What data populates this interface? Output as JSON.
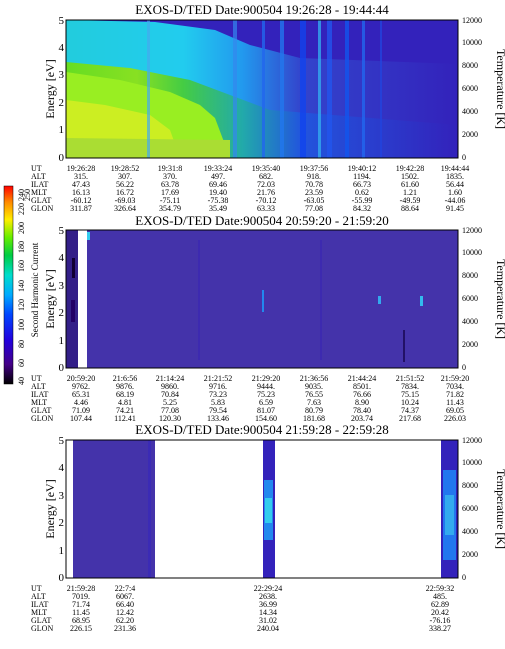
{
  "figure": {
    "panels": [
      {
        "title": "EXOS-D/TED   Date:900504   19:26:28 - 19:44:44",
        "ylabel": "Energy [eV]",
        "y2label": "Temperature [K]",
        "yticks": [
          "0",
          "1",
          "2",
          "3",
          "4",
          "5"
        ],
        "y2ticks": [
          "0",
          "2000",
          "4000",
          "6000",
          "8000",
          "10000",
          "12000"
        ],
        "table_row_labels": [
          "UT",
          "ALT",
          "ILAT",
          "MLT",
          "GLAT",
          "GLON"
        ],
        "table_columns": [
          [
            "19:26:28",
            "315.",
            "47.43",
            "16.13",
            "-60.12",
            "311.87"
          ],
          [
            "19:28:52",
            "307.",
            "56.22",
            "16.72",
            "-69.03",
            "326.64"
          ],
          [
            "19:31:8",
            "370.",
            "63.78",
            "17.69",
            "-75.11",
            "354.79"
          ],
          [
            "19:33:24",
            "497.",
            "69.46",
            "19.40",
            "-75.38",
            "35.49"
          ],
          [
            "19:35:40",
            "682.",
            "72.03",
            "21.76",
            "-70.12",
            "63.33"
          ],
          [
            "19:37:56",
            "918.",
            "70.78",
            "23.59",
            "-63.05",
            "77.08"
          ],
          [
            "19:40:12",
            "1194.",
            "66.73",
            "0.62",
            "-55.99",
            "84.32"
          ],
          [
            "19:42:28",
            "1502.",
            "61.60",
            "1.21",
            "-49.59",
            "88.64"
          ],
          [
            "19:44:44",
            "1835.",
            "56.44",
            "1.60",
            "-44.06",
            "91.45"
          ]
        ]
      },
      {
        "title": "EXOS-D/TED   Date:900504   20:59:20 - 21:59:20",
        "ylabel": "Energy [eV]",
        "y2label": "Temperature [K]",
        "yticks": [
          "0",
          "1",
          "2",
          "3",
          "4",
          "5"
        ],
        "y2ticks": [
          "0",
          "2000",
          "4000",
          "6000",
          "8000",
          "10000",
          "12000"
        ],
        "table_row_labels": [
          "UT",
          "ALT",
          "ILAT",
          "MLT",
          "GLAT",
          "GLON"
        ],
        "table_columns": [
          [
            "20:59:20",
            "9762.",
            "65.31",
            "4.46",
            "71.09",
            "107.44"
          ],
          [
            "21:6:56",
            "9876.",
            "68.19",
            "4.81",
            "74.21",
            "112.41"
          ],
          [
            "21:14:24",
            "9860.",
            "70.84",
            "5.25",
            "77.08",
            "120.30"
          ],
          [
            "21:21:52",
            "9716.",
            "73.23",
            "5.83",
            "79.54",
            "133.46"
          ],
          [
            "21:29:20",
            "9444.",
            "75.23",
            "6.59",
            "81.07",
            "154.60"
          ],
          [
            "21:36:56",
            "9035.",
            "76.55",
            "7.63",
            "80.79",
            "181.68"
          ],
          [
            "21:44:24",
            "8501.",
            "76.66",
            "8.90",
            "78.40",
            "203.74"
          ],
          [
            "21:51:52",
            "7834.",
            "75.15",
            "10.24",
            "74.37",
            "217.68"
          ],
          [
            "21:59:20",
            "7034.",
            "71.82",
            "11.43",
            "69.05",
            "226.03"
          ]
        ]
      },
      {
        "title": "EXOS-D/TED   Date:900504   21:59:28 - 22:59:28",
        "ylabel": "Energy [eV]",
        "y2label": "Temperature [K]",
        "yticks": [
          "0",
          "1",
          "2",
          "3",
          "4",
          "5"
        ],
        "y2ticks": [
          "0",
          "2000",
          "4000",
          "6000",
          "8000",
          "10000",
          "12000"
        ],
        "table_row_labels": [
          "UT",
          "ALT",
          "ILAT",
          "MLT",
          "GLAT",
          "GLON"
        ],
        "table_columns": [
          [
            "21:59:28",
            "7019.",
            "71.74",
            "11.45",
            "68.95",
            "226.15"
          ],
          [
            "22:7:4",
            "6067.",
            "66.40",
            "12.42",
            "62.20",
            "231.36"
          ],
          [
            "22:29:24",
            "2638.",
            "36.99",
            "14.34",
            "31.02",
            "240.04"
          ],
          [
            "22:59:32",
            "485.",
            "62.89",
            "20.42",
            "-76.16",
            "338.27"
          ]
        ]
      }
    ],
    "colorbar": {
      "label": "Second Harmonic Current",
      "ticks": [
        "40",
        "60",
        "80",
        "100",
        "120",
        "140",
        "160",
        "180",
        "200",
        "220",
        "240",
        "250"
      ]
    }
  },
  "chart_data": [
    {
      "type": "heatmap",
      "title": "EXOS-D/TED   Date:900504   19:26:28 - 19:44:44",
      "xlabel": "UT",
      "ylabel": "Energy [eV]",
      "y2label": "Temperature [K]",
      "ylim": [
        0,
        5
      ],
      "y2lim": [
        0,
        12000
      ],
      "x": [
        "19:26:28",
        "19:28:52",
        "19:31:8",
        "19:33:24",
        "19:35:40",
        "19:37:56",
        "19:40:12",
        "19:42:28",
        "19:44:44"
      ],
      "y": [
        0,
        0.5,
        1,
        1.5,
        2,
        2.5,
        3,
        3.5,
        4,
        4.5,
        5
      ],
      "values": [
        [
          200,
          195,
          185,
          175,
          160,
          140,
          130,
          135,
          120,
          110,
          100
        ],
        [
          200,
          195,
          185,
          170,
          155,
          140,
          125,
          135,
          125,
          115,
          105
        ],
        [
          195,
          190,
          180,
          170,
          150,
          135,
          120,
          130,
          115,
          110,
          100
        ],
        [
          195,
          185,
          175,
          165,
          140,
          125,
          110,
          120,
          110,
          100,
          95
        ],
        [
          185,
          180,
          170,
          150,
          130,
          115,
          100,
          110,
          105,
          95,
          90
        ],
        [
          170,
          170,
          160,
          140,
          120,
          105,
          95,
          100,
          95,
          90,
          85
        ],
        [
          150,
          145,
          140,
          130,
          115,
          100,
          95,
          90,
          90,
          85,
          80
        ],
        [
          130,
          125,
          120,
          115,
          105,
          95,
          90,
          85,
          85,
          80,
          80
        ],
        [
          120,
          115,
          110,
          105,
          100,
          90,
          85,
          85,
          80,
          80,
          80
        ]
      ],
      "colorbar": {
        "label": "Second Harmonic Current",
        "range": [
          40,
          250
        ]
      }
    },
    {
      "type": "heatmap",
      "title": "EXOS-D/TED   Date:900504   20:59:20 - 21:59:20",
      "xlabel": "UT",
      "ylabel": "Energy [eV]",
      "y2label": "Temperature [K]",
      "ylim": [
        0,
        5
      ],
      "y2lim": [
        0,
        12000
      ],
      "x": [
        "20:59:20",
        "21:6:56",
        "21:14:24",
        "21:21:52",
        "21:29:20",
        "21:36:56",
        "21:44:24",
        "21:51:52",
        "21:59:20"
      ],
      "y": [
        0,
        0.5,
        1,
        1.5,
        2,
        2.5,
        3,
        3.5,
        4,
        4.5,
        5
      ],
      "values": [
        [
          90,
          95,
          100,
          95,
          100,
          95,
          90,
          95,
          100,
          95,
          90
        ],
        [
          85,
          85,
          90,
          85,
          90,
          85,
          85,
          90,
          85,
          85,
          85
        ],
        [
          85,
          85,
          85,
          85,
          85,
          85,
          85,
          85,
          85,
          85,
          85
        ],
        [
          85,
          85,
          85,
          85,
          85,
          85,
          85,
          85,
          85,
          85,
          85
        ],
        [
          85,
          85,
          90,
          85,
          95,
          90,
          85,
          85,
          85,
          85,
          85
        ],
        [
          85,
          85,
          85,
          90,
          85,
          85,
          85,
          85,
          85,
          85,
          85
        ],
        [
          85,
          85,
          85,
          85,
          85,
          85,
          85,
          85,
          85,
          85,
          85
        ],
        [
          85,
          85,
          85,
          85,
          85,
          85,
          85,
          85,
          85,
          85,
          85
        ],
        [
          85,
          85,
          85,
          85,
          85,
          85,
          85,
          85,
          85,
          85,
          85
        ]
      ],
      "colorbar": {
        "label": "Second Harmonic Current",
        "range": [
          40,
          250
        ]
      }
    },
    {
      "type": "heatmap",
      "title": "EXOS-D/TED   Date:900504   21:59:28 - 22:59:28",
      "xlabel": "UT",
      "ylabel": "Energy [eV]",
      "y2label": "Temperature [K]",
      "ylim": [
        0,
        5
      ],
      "y2lim": [
        0,
        12000
      ],
      "x": [
        "21:59:28",
        "22:7:4",
        "22:29:24",
        "22:59:32"
      ],
      "y": [
        0,
        0.5,
        1,
        1.5,
        2,
        2.5,
        3,
        3.5,
        4,
        4.5,
        5
      ],
      "values": [
        [
          90,
          90,
          90,
          90,
          90,
          90,
          90,
          90,
          90,
          90,
          90
        ],
        [
          85,
          85,
          85,
          85,
          85,
          85,
          85,
          85,
          85,
          85,
          85
        ],
        [
          95,
          100,
          120,
          140,
          120,
          100,
          95,
          90,
          90,
          90,
          90
        ],
        [
          95,
          100,
          110,
          125,
          110,
          100,
          95,
          90,
          90,
          90,
          90
        ]
      ],
      "colorbar": {
        "label": "Second Harmonic Current",
        "range": [
          40,
          250
        ]
      }
    }
  ]
}
